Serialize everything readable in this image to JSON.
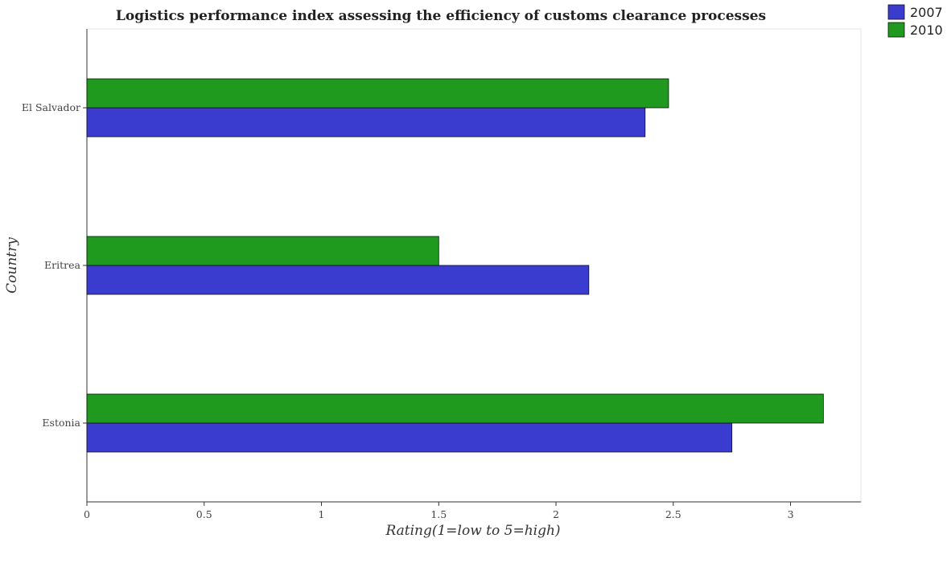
{
  "chart_data": {
    "type": "bar",
    "orientation": "horizontal",
    "title": "Logistics performance index assessing the efficiency of customs clearance processes",
    "xlabel": "Rating(1=low to 5=high)",
    "ylabel": "Country",
    "categories": [
      "El Salvador",
      "Eritrea",
      "Estonia"
    ],
    "series": [
      {
        "name": "2007",
        "color": "#3a3cd0",
        "values": [
          2.38,
          2.14,
          2.75
        ]
      },
      {
        "name": "2010",
        "color": "#1f9a1f",
        "values": [
          2.48,
          1.5,
          3.14
        ]
      }
    ],
    "xlim": [
      0,
      3.3
    ],
    "xticks": [
      0,
      0.5,
      1,
      1.5,
      2,
      2.5,
      3
    ],
    "xtick_labels": [
      "0",
      "0.5",
      "1",
      "1.5",
      "2",
      "2.5",
      "3"
    ],
    "legend_position": "top-right",
    "grid": false
  }
}
